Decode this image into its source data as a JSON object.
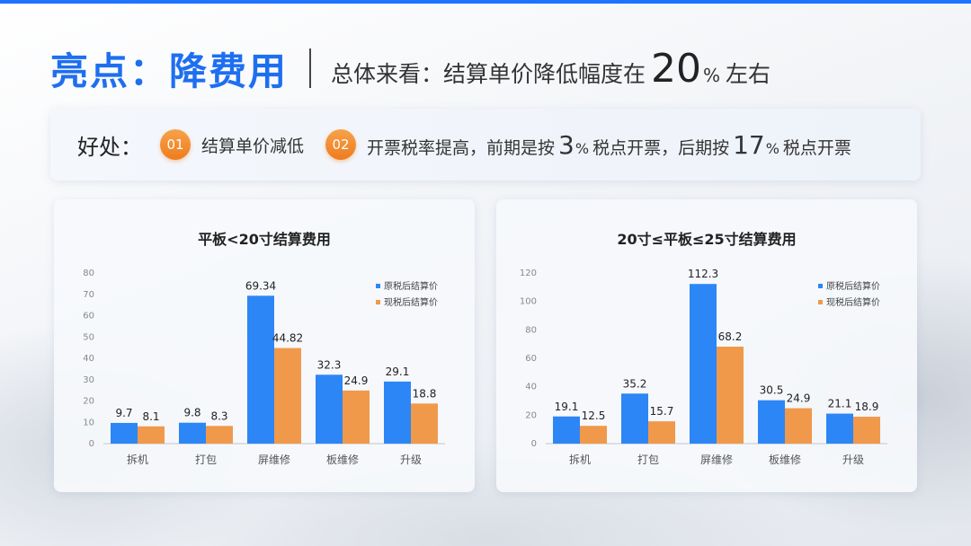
{
  "header": {
    "title": "亮点：降费用",
    "subtitle_prefix": "总体来看：结算单价降低幅度在",
    "subtitle_number": "20",
    "subtitle_unit": "%",
    "subtitle_suffix": "左右"
  },
  "benefits": {
    "label": "好处：",
    "items": [
      {
        "badge": "01",
        "text": "结算单价减低"
      },
      {
        "badge": "02",
        "text_a": "开票税率提高，前期是按",
        "num_a": "3",
        "unit_a": "%",
        "text_b": "税点开票，后期按",
        "num_b": "17",
        "unit_b": "%",
        "text_c": "税点开票"
      }
    ]
  },
  "colors": {
    "accent": "#1e6ff0",
    "series_before": "#2d86f5",
    "series_after": "#f0994a",
    "badge": "#ee7c1e"
  },
  "chart_data": [
    {
      "type": "bar",
      "title": "平板<20寸结算费用",
      "categories": [
        "拆机",
        "打包",
        "屏维修",
        "板维修",
        "升级"
      ],
      "series": [
        {
          "name": "原税后结算价",
          "values": [
            9.7,
            9.8,
            69.34,
            32.3,
            29.1
          ],
          "labels": [
            "9.7",
            "9.8",
            "69.34",
            "32.3",
            "29.1"
          ]
        },
        {
          "name": "现税后结算价",
          "values": [
            8.1,
            8.3,
            44.82,
            24.9,
            18.8
          ],
          "labels": [
            "8.1",
            "8.3",
            "44.82",
            "24.9",
            "18.8"
          ]
        }
      ],
      "ylim": [
        0,
        80
      ],
      "yticks": [
        0,
        10,
        20,
        30,
        40,
        50,
        60,
        70,
        80
      ],
      "legend": "top-right",
      "grid": false
    },
    {
      "type": "bar",
      "title": "20寸≤平板≤25寸结算费用",
      "categories": [
        "拆机",
        "打包",
        "屏维修",
        "板维修",
        "升级"
      ],
      "series": [
        {
          "name": "原税后结算价",
          "values": [
            19.1,
            35.2,
            112.3,
            30.5,
            21.1
          ],
          "labels": [
            "19.1",
            "35.2",
            "112.3",
            "30.5",
            "21.1"
          ]
        },
        {
          "name": "现税后结算价",
          "values": [
            12.5,
            15.7,
            68.2,
            24.9,
            18.9
          ],
          "labels": [
            "12.5",
            "15.7",
            "68.2",
            "24.9",
            "18.9"
          ]
        }
      ],
      "ylim": [
        0,
        120
      ],
      "yticks": [
        0,
        20,
        40,
        60,
        80,
        100,
        120
      ],
      "legend": "top-right",
      "grid": false
    }
  ]
}
